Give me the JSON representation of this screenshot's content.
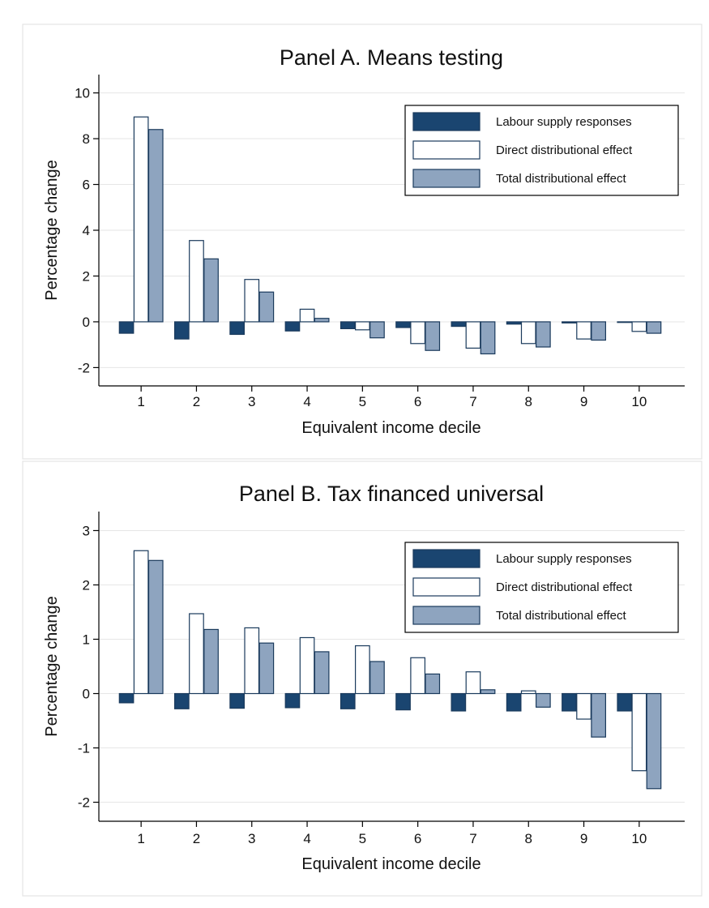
{
  "colors": {
    "labour": "#1a4570",
    "direct": "#ffffff",
    "total": "#8ea4bf",
    "edge": "#1a3a5c"
  },
  "chart_data": [
    {
      "type": "bar",
      "title": "Panel A. Means testing",
      "xlabel": "Equivalent income decile",
      "ylabel": "Percentage change",
      "categories": [
        "1",
        "2",
        "3",
        "4",
        "5",
        "6",
        "7",
        "8",
        "9",
        "10"
      ],
      "ylim": [
        -2.8,
        10.8
      ],
      "yticks": [
        -2,
        0,
        2,
        4,
        6,
        8,
        10
      ],
      "ytick_labels": [
        "-2",
        "0",
        "2",
        "4",
        "6",
        "8",
        "10"
      ],
      "grid": true,
      "legend_position": "top-right",
      "series": [
        {
          "name": "Labour supply responses",
          "color_key": "labour",
          "values": [
            -0.5,
            -0.75,
            -0.55,
            -0.4,
            -0.3,
            -0.25,
            -0.2,
            -0.1,
            -0.05,
            -0.02
          ]
        },
        {
          "name": "Direct distributional effect",
          "color_key": "direct",
          "values": [
            8.95,
            3.55,
            1.85,
            0.55,
            -0.35,
            -0.95,
            -1.15,
            -0.95,
            -0.75,
            -0.42
          ]
        },
        {
          "name": "Total distributional effect",
          "color_key": "total",
          "values": [
            8.4,
            2.75,
            1.3,
            0.15,
            -0.7,
            -1.25,
            -1.4,
            -1.1,
            -0.8,
            -0.5
          ]
        }
      ]
    },
    {
      "type": "bar",
      "title": "Panel B. Tax financed universal",
      "xlabel": "Equivalent income decile",
      "ylabel": "Percentage change",
      "categories": [
        "1",
        "2",
        "3",
        "4",
        "5",
        "6",
        "7",
        "8",
        "9",
        "10"
      ],
      "ylim": [
        -2.35,
        3.35
      ],
      "yticks": [
        -2,
        -1,
        0,
        1,
        2,
        3
      ],
      "ytick_labels": [
        "-2",
        "-1",
        "0",
        "1",
        "2",
        "3"
      ],
      "grid": true,
      "legend_position": "top-right",
      "series": [
        {
          "name": "Labour supply responses",
          "color_key": "labour",
          "values": [
            -0.17,
            -0.28,
            -0.27,
            -0.26,
            -0.28,
            -0.3,
            -0.32,
            -0.32,
            -0.32,
            -0.32
          ]
        },
        {
          "name": "Direct distributional effect",
          "color_key": "direct",
          "values": [
            2.63,
            1.47,
            1.21,
            1.03,
            0.88,
            0.66,
            0.4,
            0.05,
            -0.47,
            -1.42
          ]
        },
        {
          "name": "Total distributional effect",
          "color_key": "total",
          "values": [
            2.45,
            1.18,
            0.93,
            0.77,
            0.59,
            0.36,
            0.07,
            -0.25,
            -0.8,
            -1.75
          ]
        }
      ]
    }
  ]
}
